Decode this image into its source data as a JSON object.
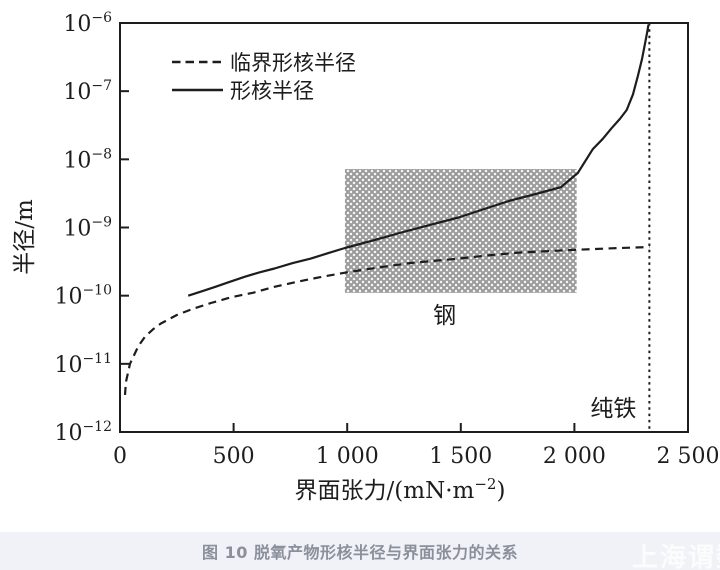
{
  "figure": {
    "caption": "图 10 脱氧产物形核半径与界面张力的关系",
    "watermark": "上海谓数"
  },
  "colors": {
    "ink": "#1d1d1d",
    "hatch_gray": "#9b9b9b",
    "caption_band_bg": "#f1f2f8",
    "caption_text": "#8a909b",
    "watermark_text": "#ffffff"
  },
  "chart_data": {
    "type": "line",
    "title": "",
    "xlabel": "界面张力/(mN·m−2)",
    "xlabel_parts": {
      "main": "界面张力/(mN·m",
      "sup": "−2",
      "end": ")"
    },
    "ylabel": "半径/m",
    "x_range": [
      0,
      2500
    ],
    "x_ticks": [
      0,
      500,
      1000,
      1500,
      2000,
      2500
    ],
    "x_tick_labels": [
      "0",
      "500",
      "1 000",
      "1 500",
      "2 000",
      "2 500"
    ],
    "y_scale": "log",
    "y_range": [
      1e-12,
      1e-06
    ],
    "y_tick_exponents": [
      -6,
      -7,
      -8,
      -9,
      -10,
      -11,
      -12
    ],
    "grid": false,
    "legend_position": "upper-left-inside",
    "legend": [
      {
        "label": "临界形核半径",
        "style": "dashed"
      },
      {
        "label": "形核半径",
        "style": "solid"
      }
    ],
    "series": [
      {
        "name": "临界形核半径",
        "style": "dashed",
        "points": [
          [
            22,
            3.5e-12
          ],
          [
            26,
            5.4e-12
          ],
          [
            44,
            1e-11
          ],
          [
            80,
            1.8e-11
          ],
          [
            110,
            2.5e-11
          ],
          [
            145,
            3.2e-11
          ],
          [
            180,
            3.9e-11
          ],
          [
            250,
            5.2e-11
          ],
          [
            320,
            6.4e-11
          ],
          [
            400,
            7.8e-11
          ],
          [
            490,
            9.5e-11
          ],
          [
            585,
            1.1e-10
          ],
          [
            680,
            1.35e-10
          ],
          [
            780,
            1.6e-10
          ],
          [
            890,
            1.9e-10
          ],
          [
            1000,
            2.2e-10
          ],
          [
            1140,
            2.6e-10
          ],
          [
            1275,
            3e-10
          ],
          [
            1490,
            3.5e-10
          ],
          [
            1620,
            3.9e-10
          ],
          [
            1760,
            4.3e-10
          ],
          [
            1995,
            4.7e-10
          ],
          [
            2200,
            5e-10
          ],
          [
            2330,
            5.15e-10
          ]
        ]
      },
      {
        "name": "形核半径",
        "style": "solid",
        "points": [
          [
            300,
            1e-10
          ],
          [
            360,
            1.16e-10
          ],
          [
            420,
            1.35e-10
          ],
          [
            480,
            1.58e-10
          ],
          [
            550,
            1.9e-10
          ],
          [
            615,
            2.2e-10
          ],
          [
            680,
            2.5e-10
          ],
          [
            760,
            3e-10
          ],
          [
            840,
            3.5e-10
          ],
          [
            915,
            4.2e-10
          ],
          [
            990,
            5e-10
          ],
          [
            1110,
            6.4e-10
          ],
          [
            1230,
            8.3e-10
          ],
          [
            1360,
            1.08e-09
          ],
          [
            1490,
            1.4e-09
          ],
          [
            1610,
            1.9e-09
          ],
          [
            1720,
            2.5e-09
          ],
          [
            1830,
            3.1e-09
          ],
          [
            1940,
            3.9e-09
          ],
          [
            2015,
            6.3e-09
          ],
          [
            2080,
            1.4e-08
          ],
          [
            2125,
            2e-08
          ],
          [
            2165,
            2.9e-08
          ],
          [
            2200,
            3.9e-08
          ],
          [
            2230,
            5.3e-08
          ],
          [
            2258,
            9e-08
          ],
          [
            2280,
            1.7e-07
          ],
          [
            2298,
            3e-07
          ],
          [
            2310,
            4.8e-07
          ],
          [
            2320,
            7.2e-07
          ],
          [
            2326,
            9.5e-07
          ]
        ]
      }
    ],
    "steel_region": {
      "label": "钢",
      "x_range": [
        990,
        2010
      ],
      "r_range": [
        1.1e-10,
        7.2e-09
      ]
    },
    "pure_iron": {
      "label": "纯铁",
      "x": 2330
    }
  }
}
